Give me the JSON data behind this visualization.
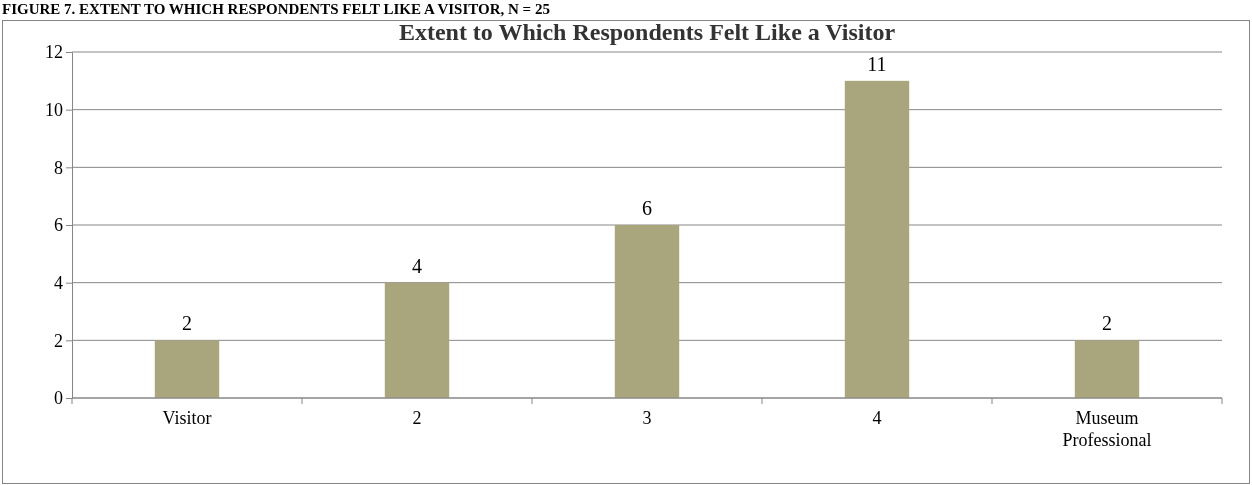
{
  "chart_data": {
    "type": "bar",
    "title": "Extent to Which Respondents Felt Like a Visitor",
    "annotations": [
      "FIGURE 7. EXTENT TO WHICH RESPONDENTS FELT LIKE A VISITOR, N = 25"
    ],
    "categories": [
      "Visitor",
      "2",
      "3",
      "4",
      "Museum Professional"
    ],
    "values": [
      2,
      4,
      6,
      11,
      2
    ],
    "color": "#a9a57c",
    "ylim": [
      0,
      12
    ],
    "yticks": [
      0,
      2,
      4,
      6,
      8,
      10,
      12
    ],
    "grid": "y",
    "data_labels": true
  }
}
